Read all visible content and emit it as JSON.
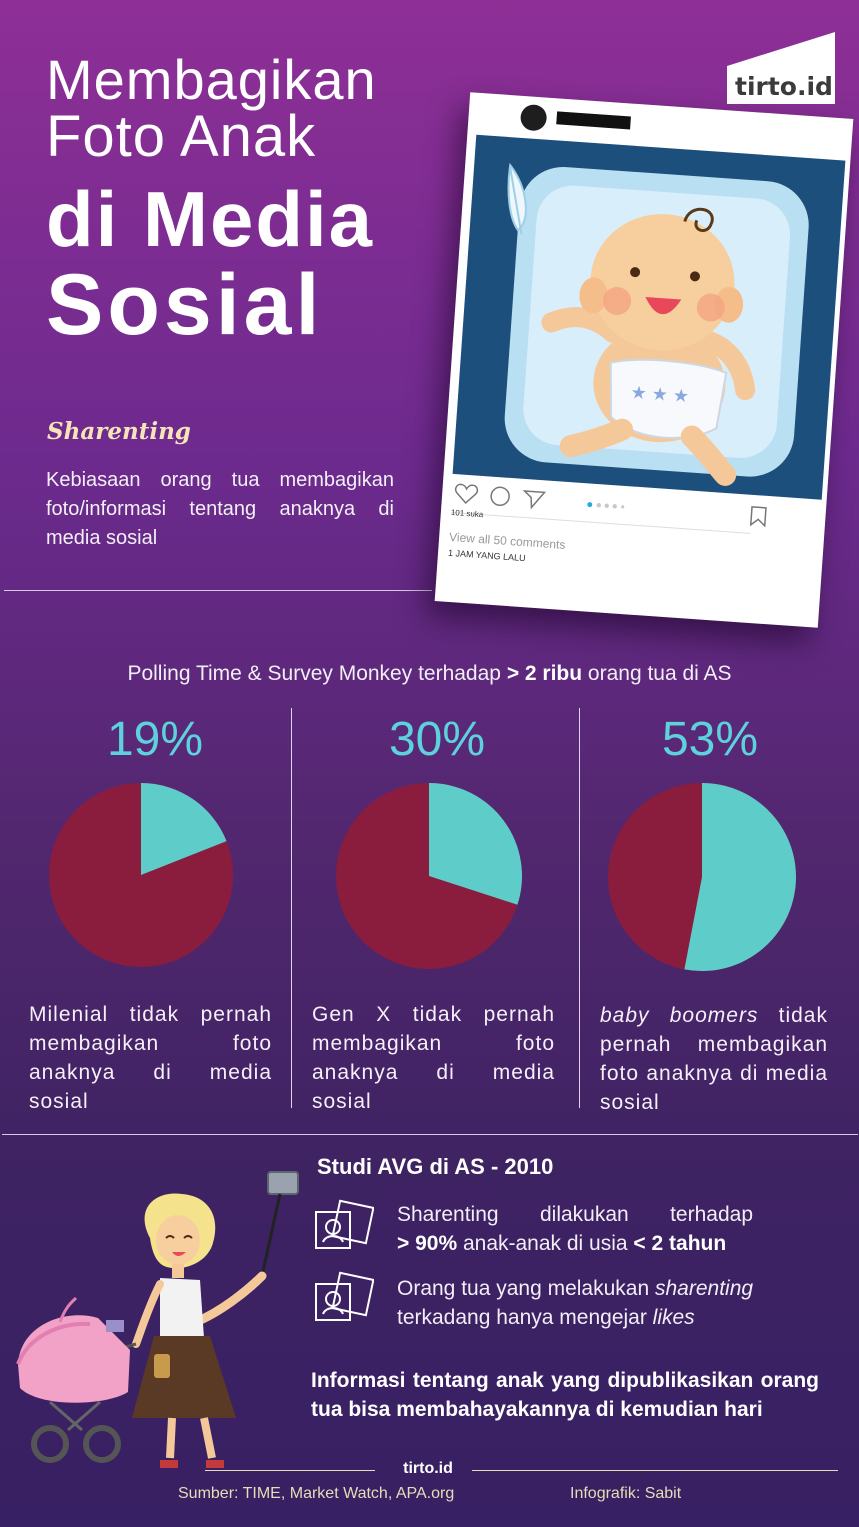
{
  "header": {
    "title_lines": [
      "Membagikan",
      "Foto Anak",
      "di Media",
      "Sosial"
    ],
    "logo": "tirto.id"
  },
  "intro": {
    "term": "Sharenting",
    "definition": "Kebiasaan orang tua membagikan foto/informasi tentang anaknya di media sosial"
  },
  "social_post": {
    "likes": "101 suka",
    "comments": "View all 50 comments",
    "time": "1 JAM YANG LALU",
    "icons": [
      "heart-icon",
      "comment-icon",
      "send-icon",
      "bookmark-icon",
      "user-icon"
    ]
  },
  "poll": {
    "heading_pre": "Polling Time & Survey Monkey terhadap ",
    "heading_bold": "> 2 ribu",
    "heading_post": " orang tua di AS",
    "items": [
      {
        "percent_label": "19%",
        "lead": "",
        "caption": "Milenial tidak pernah membagikan foto anaknya di media sosial"
      },
      {
        "percent_label": "30%",
        "lead": "",
        "caption": "Gen X tidak pernah membagikan foto anaknya di media sosial"
      },
      {
        "percent_label": "53%",
        "lead": "baby boomers",
        "caption": " tidak pernah membagikan foto anaknya di media sosial"
      }
    ]
  },
  "chart_data": {
    "type": "pie",
    "charts": [
      {
        "category": "Milenial",
        "value": 19,
        "remainder": 81
      },
      {
        "category": "Gen X",
        "value": 30,
        "remainder": 70
      },
      {
        "category": "baby boomers",
        "value": 53,
        "remainder": 47
      }
    ],
    "colors": {
      "highlight": "#5ecdc9",
      "remainder": "#8a1d3e"
    }
  },
  "study": {
    "heading": "Studi AVG di AS - 2010",
    "fact1_pre": "Sharenting dilakukan terhadap",
    "fact1_bold1": "> 90%",
    "fact1_mid": " anak-anak di usia ",
    "fact1_bold2": "< 2 tahun",
    "fact2_pre": "Orang tua yang melakukan ",
    "fact2_italic": "sharenting",
    "fact2_mid": "terkadang hanya mengejar ",
    "fact2_italic2": "likes",
    "warning": "Informasi tentang anak yang dipublikasikan orang tua bisa membahayakannya di kemudian hari"
  },
  "footer": {
    "brand": "tirto.id",
    "source": "Sumber: TIME, Market Watch, APA.org",
    "credit": "Infografik: Sabit"
  },
  "colors": {
    "accent_cyan": "#5dd1dc",
    "pie_cyan": "#5ecdc9",
    "pie_maroon": "#8a1d3e",
    "footer_text": "#e8dcb8"
  }
}
